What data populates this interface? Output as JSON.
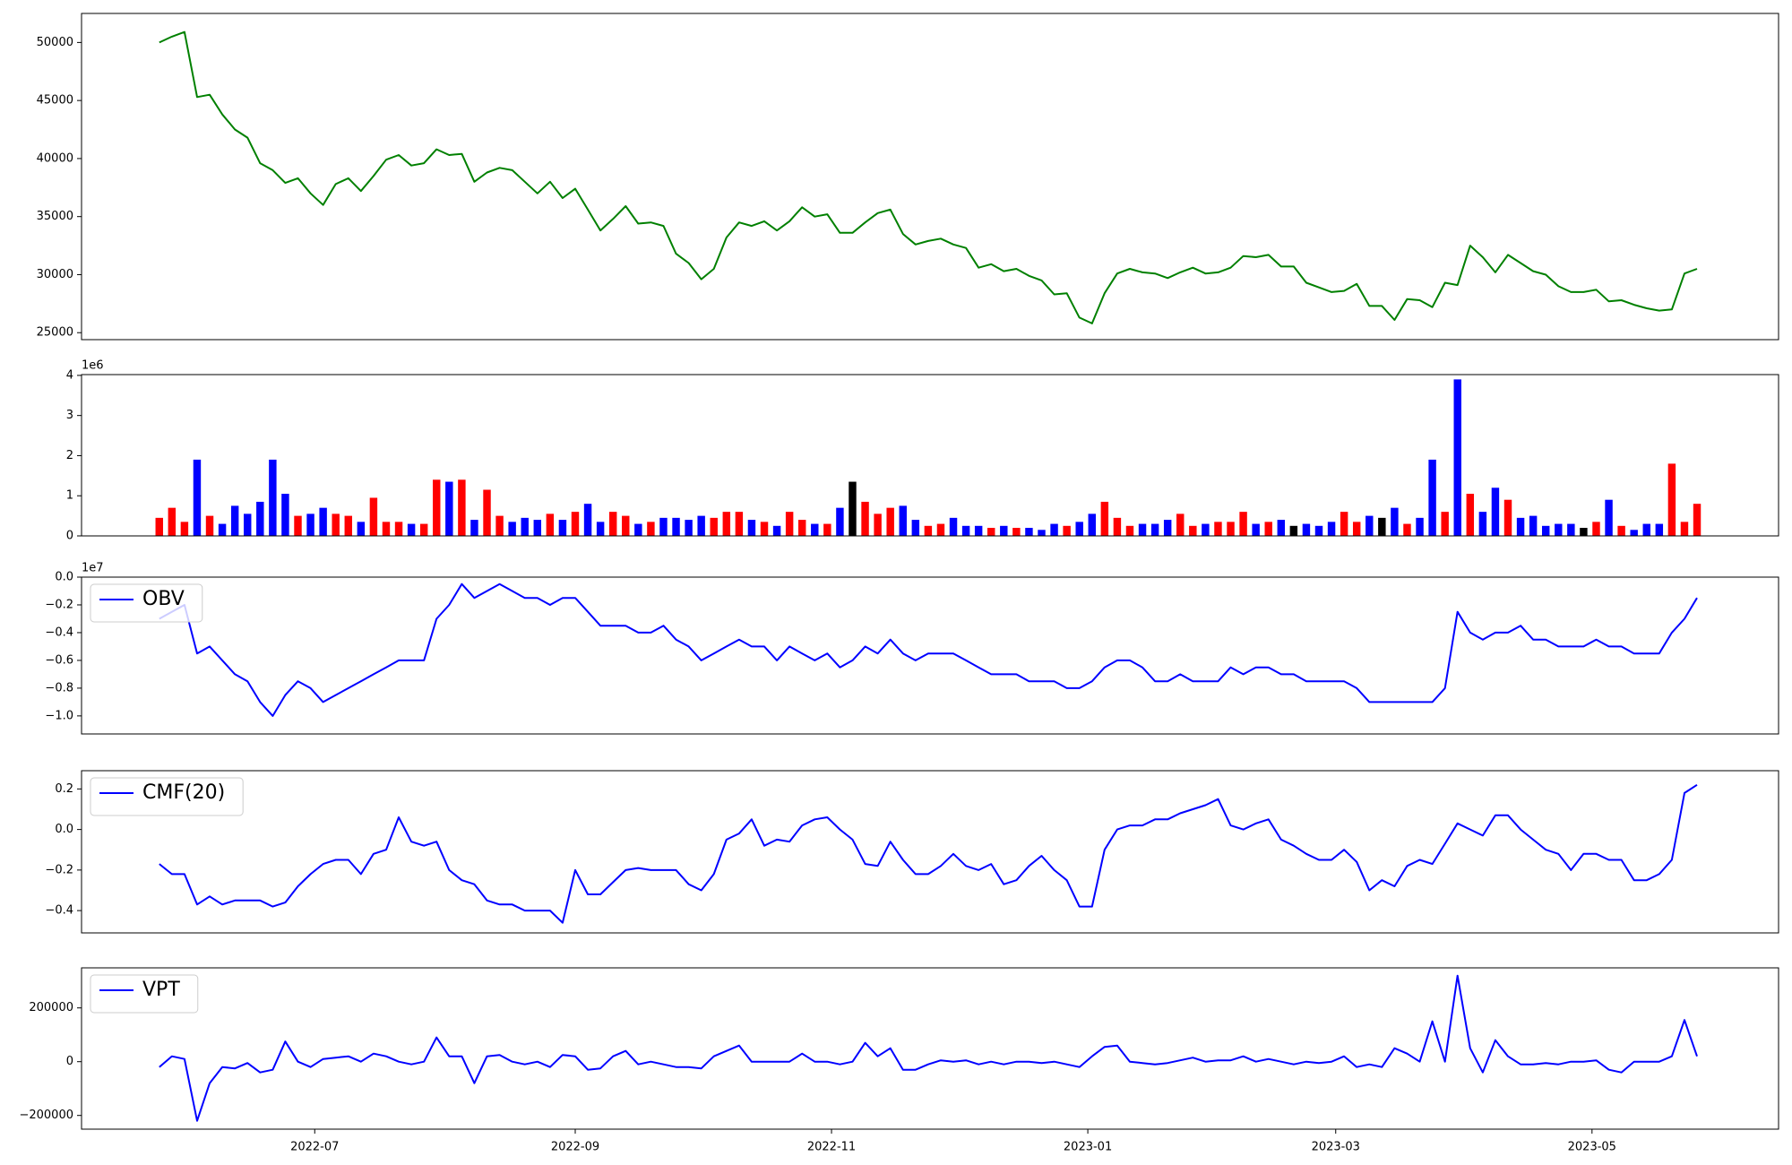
{
  "chart_data": {
    "type": "stacked-panels",
    "x": [
      -37,
      -34,
      -31,
      -28,
      -25,
      -22,
      -19,
      -16,
      -13,
      -10,
      -7,
      -4,
      -1,
      2,
      5,
      8,
      11,
      14,
      17,
      20,
      23,
      26,
      29,
      32,
      35,
      38,
      41,
      44,
      47,
      50,
      53,
      56,
      59,
      62,
      65,
      68,
      71,
      74,
      77,
      80,
      83,
      86,
      89,
      92,
      95,
      98,
      101,
      104,
      107,
      110,
      113,
      116,
      119,
      122,
      125,
      128,
      131,
      134,
      137,
      140,
      143,
      146,
      149,
      152,
      155,
      158,
      161,
      164,
      167,
      170,
      173,
      176,
      179,
      182,
      185,
      188,
      191,
      194,
      197,
      200,
      203,
      206,
      209,
      212,
      215,
      218,
      221,
      224,
      227,
      230,
      233,
      236,
      239,
      242,
      245,
      248,
      251,
      254,
      257,
      260,
      263,
      266,
      269,
      272,
      275,
      278,
      281,
      284,
      287,
      290,
      293,
      296,
      299,
      302,
      305,
      308,
      311,
      314,
      317,
      320,
      323,
      326,
      329
    ],
    "xlim": [
      -55.5,
      348.4
    ],
    "xticks": [
      {
        "value": 0,
        "label": "2022-07"
      },
      {
        "value": 62,
        "label": "2022-09"
      },
      {
        "value": 123,
        "label": "2022-11"
      },
      {
        "value": 184,
        "label": "2023-01"
      },
      {
        "value": 243,
        "label": "2023-03"
      },
      {
        "value": 304,
        "label": "2023-05"
      }
    ],
    "panels": [
      {
        "type": "line",
        "ylim": [
          24400,
          52500
        ],
        "yticks": [
          25000,
          30000,
          35000,
          40000,
          45000,
          50000
        ],
        "series": [
          {
            "color": "green",
            "values": [
              50000,
              50500,
              50900,
              45300,
              45500,
              43800,
              42500,
              41800,
              39600,
              39000,
              37900,
              38300,
              37000,
              36000,
              37800,
              38300,
              37200,
              38500,
              39900,
              40300,
              39400,
              39600,
              40800,
              40300,
              40400,
              38000,
              38800,
              39200,
              39000,
              38000,
              37000,
              38000,
              36600,
              37400,
              35600,
              33800,
              34800,
              35900,
              34400,
              34500,
              34200,
              31800,
              31000,
              29600,
              30500,
              33200,
              34500,
              34200,
              34600,
              33800,
              34600,
              35800,
              35000,
              35200,
              33600,
              33600,
              34500,
              35300,
              35600,
              33500,
              32600,
              32900,
              33100,
              32600,
              32300,
              30600,
              30900,
              30300,
              30500,
              29900,
              29500,
              28300,
              28400,
              26300,
              25800,
              28400,
              30100,
              30500,
              30200,
              30100,
              29700,
              30200,
              30600,
              30100,
              30200,
              30600,
              31600,
              31500,
              31700,
              30700,
              30700,
              29300,
              28900,
              28500,
              28600,
              29200,
              27300,
              27300,
              26100,
              27900,
              27800,
              27200,
              29300,
              29100,
              32500,
              31500,
              30200,
              31700,
              31000,
              30300,
              30000,
              29000,
              28500,
              28500,
              28700,
              27700,
              27800,
              27400,
              27100,
              26900,
              27000,
              30100,
              30500
            ]
          }
        ]
      },
      {
        "type": "bar",
        "ylim": [
          0,
          4.02
        ],
        "yticks": [
          0,
          1,
          2,
          3,
          4
        ],
        "offset_label": "1e6",
        "up_color": "red",
        "down_color": "blue",
        "flat_color": "black",
        "values": [
          0.45,
          0.7,
          0.35,
          1.9,
          0.5,
          0.3,
          0.75,
          0.55,
          0.85,
          1.9,
          1.05,
          0.5,
          0.55,
          0.7,
          0.55,
          0.5,
          0.35,
          0.95,
          0.35,
          0.35,
          0.3,
          0.3,
          1.4,
          1.35,
          1.4,
          0.4,
          1.15,
          0.5,
          0.35,
          0.45,
          0.4,
          0.55,
          0.4,
          0.6,
          0.8,
          0.35,
          0.6,
          0.5,
          0.3,
          0.35,
          0.45,
          0.45,
          0.4,
          0.5,
          0.45,
          0.6,
          0.6,
          0.4,
          0.35,
          0.25,
          0.6,
          0.4,
          0.3,
          0.3,
          0.7,
          1.35,
          0.85,
          0.55,
          0.7,
          0.75,
          0.4,
          0.25,
          0.3,
          0.45,
          0.25,
          0.25,
          0.2,
          0.25,
          0.2,
          0.2,
          0.15,
          0.3,
          0.25,
          0.35,
          0.55,
          0.85,
          0.45,
          0.25,
          0.3,
          0.3,
          0.4,
          0.55,
          0.25,
          0.3,
          0.35,
          0.35,
          0.6,
          0.3,
          0.35,
          0.4,
          0.25,
          0.3,
          0.25,
          0.35,
          0.6,
          0.35,
          0.5,
          0.45,
          0.7,
          0.3,
          0.45,
          1.9,
          0.6,
          3.9,
          1.05,
          0.6,
          1.2,
          0.9,
          0.45,
          0.5,
          0.25,
          0.3,
          0.3,
          0.2,
          0.35,
          0.9,
          0.25,
          0.15,
          0.3,
          0.3,
          1.8,
          0.35,
          0.8
        ]
      },
      {
        "type": "line",
        "ylim": [
          -1.13,
          0.0
        ],
        "offset_label": "1e7",
        "yticks": [
          {
            "value": -1.0,
            "label": "−1.0"
          },
          {
            "value": -0.8,
            "label": "−0.8"
          },
          {
            "value": -0.6,
            "label": "−0.6"
          },
          {
            "value": -0.4,
            "label": "−0.4"
          },
          {
            "value": -0.2,
            "label": "−0.2"
          },
          {
            "value": 0.0,
            "label": "0.0"
          }
        ],
        "series": [
          {
            "name": "OBV",
            "color": "blue",
            "values": [
              -0.3,
              -0.25,
              -0.2,
              -0.55,
              -0.5,
              -0.6,
              -0.7,
              -0.75,
              -0.9,
              -1.0,
              -0.85,
              -0.75,
              -0.8,
              -0.9,
              -0.85,
              -0.8,
              -0.75,
              -0.7,
              -0.65,
              -0.6,
              -0.6,
              -0.6,
              -0.3,
              -0.2,
              -0.05,
              -0.15,
              -0.1,
              -0.05,
              -0.1,
              -0.15,
              -0.15,
              -0.2,
              -0.15,
              -0.15,
              -0.25,
              -0.35,
              -0.35,
              -0.35,
              -0.4,
              -0.4,
              -0.35,
              -0.45,
              -0.5,
              -0.6,
              -0.55,
              -0.5,
              -0.45,
              -0.5,
              -0.5,
              -0.6,
              -0.5,
              -0.55,
              -0.6,
              -0.55,
              -0.65,
              -0.6,
              -0.5,
              -0.55,
              -0.45,
              -0.55,
              -0.6,
              -0.55,
              -0.55,
              -0.55,
              -0.6,
              -0.65,
              -0.7,
              -0.7,
              -0.7,
              -0.75,
              -0.75,
              -0.75,
              -0.8,
              -0.8,
              -0.75,
              -0.65,
              -0.6,
              -0.6,
              -0.65,
              -0.75,
              -0.75,
              -0.7,
              -0.75,
              -0.75,
              -0.75,
              -0.65,
              -0.7,
              -0.65,
              -0.65,
              -0.7,
              -0.7,
              -0.75,
              -0.75,
              -0.75,
              -0.75,
              -0.8,
              -0.9,
              -0.9,
              -0.9,
              -0.9,
              -0.9,
              -0.9,
              -0.8,
              -0.25,
              -0.4,
              -0.45,
              -0.4,
              -0.4,
              -0.35,
              -0.45,
              -0.45,
              -0.5,
              -0.5,
              -0.5,
              -0.45,
              -0.5,
              -0.5,
              -0.55,
              -0.55,
              -0.55,
              -0.4,
              -0.3,
              -0.15
            ]
          }
        ]
      },
      {
        "type": "line",
        "ylim": [
          -0.51,
          0.29
        ],
        "yticks": [
          {
            "value": -0.4,
            "label": "−0.4"
          },
          {
            "value": -0.2,
            "label": "−0.2"
          },
          {
            "value": 0.0,
            "label": "0.0"
          },
          0.2
        ],
        "series": [
          {
            "name": "CMF(20)",
            "color": "blue",
            "values": [
              -0.17,
              -0.22,
              -0.22,
              -0.37,
              -0.33,
              -0.37,
              -0.35,
              -0.35,
              -0.35,
              -0.38,
              -0.36,
              -0.28,
              -0.22,
              -0.17,
              -0.15,
              -0.15,
              -0.22,
              -0.12,
              -0.1,
              0.06,
              -0.06,
              -0.08,
              -0.06,
              -0.2,
              -0.25,
              -0.27,
              -0.35,
              -0.37,
              -0.37,
              -0.4,
              -0.4,
              -0.4,
              -0.46,
              -0.2,
              -0.32,
              -0.32,
              -0.26,
              -0.2,
              -0.19,
              -0.2,
              -0.2,
              -0.2,
              -0.27,
              -0.3,
              -0.22,
              -0.05,
              -0.02,
              0.05,
              -0.08,
              -0.05,
              -0.06,
              0.02,
              0.05,
              0.06,
              0.0,
              -0.05,
              -0.17,
              -0.18,
              -0.06,
              -0.15,
              -0.22,
              -0.22,
              -0.18,
              -0.12,
              -0.18,
              -0.2,
              -0.17,
              -0.27,
              -0.25,
              -0.18,
              -0.13,
              -0.2,
              -0.25,
              -0.38,
              -0.38,
              -0.1,
              0.0,
              0.02,
              0.02,
              0.05,
              0.05,
              0.08,
              0.1,
              0.12,
              0.15,
              0.02,
              0.0,
              0.03,
              0.05,
              -0.05,
              -0.08,
              -0.12,
              -0.15,
              -0.15,
              -0.1,
              -0.16,
              -0.3,
              -0.25,
              -0.28,
              -0.18,
              -0.15,
              -0.17,
              -0.07,
              0.03,
              0.0,
              -0.03,
              0.07,
              0.07,
              0.0,
              -0.05,
              -0.1,
              -0.12,
              -0.2,
              -0.12,
              -0.12,
              -0.15,
              -0.15,
              -0.25,
              -0.25,
              -0.22,
              -0.15,
              0.18,
              0.22
            ]
          }
        ]
      },
      {
        "type": "line",
        "ylim": [
          -251000,
          349000
        ],
        "yticks": [
          {
            "value": -200000,
            "label": "−200000"
          },
          0,
          200000
        ],
        "series": [
          {
            "name": "VPT",
            "color": "blue",
            "values": [
              -20000,
              20000,
              10000,
              -220000,
              -80000,
              -20000,
              -25000,
              -5000,
              -40000,
              -30000,
              75000,
              0,
              -20000,
              10000,
              15000,
              20000,
              0,
              30000,
              20000,
              0,
              -10000,
              0,
              90000,
              20000,
              20000,
              -80000,
              20000,
              25000,
              0,
              -10000,
              0,
              -20000,
              25000,
              20000,
              -30000,
              -25000,
              20000,
              40000,
              -10000,
              0,
              -10000,
              -20000,
              -20000,
              -25000,
              20000,
              40000,
              60000,
              0,
              0,
              0,
              0,
              30000,
              0,
              0,
              -10000,
              0,
              70000,
              20000,
              50000,
              -30000,
              -30000,
              -10000,
              5000,
              0,
              5000,
              -10000,
              0,
              -10000,
              0,
              0,
              -5000,
              0,
              -10000,
              -20000,
              20000,
              55000,
              60000,
              0,
              -5000,
              -10000,
              -5000,
              5000,
              15000,
              0,
              5000,
              5000,
              20000,
              0,
              10000,
              0,
              -10000,
              0,
              -5000,
              0,
              20000,
              -20000,
              -10000,
              -20000,
              50000,
              30000,
              0,
              150000,
              0,
              320000,
              50000,
              -40000,
              80000,
              20000,
              -10000,
              -10000,
              -5000,
              -10000,
              0,
              0,
              5000,
              -30000,
              -40000,
              0,
              0,
              0,
              20000,
              155000,
              20000
            ]
          }
        ]
      }
    ]
  }
}
